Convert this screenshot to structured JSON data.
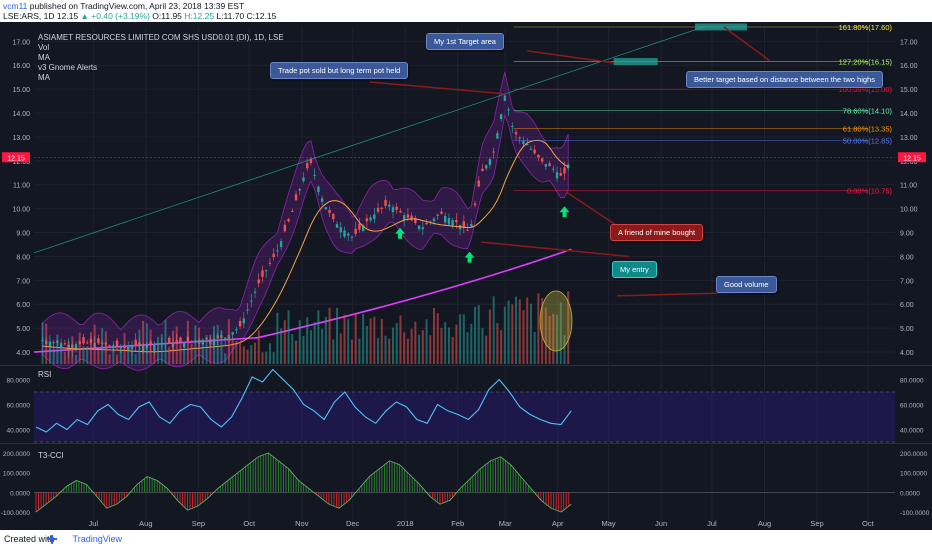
{
  "header": {
    "user": "vcm11",
    "published": "published on TradingView.com, April 23, 2018 13:39 EST",
    "symbol": "LSE:ARS, 1D",
    "last": "12.15",
    "change": "▲ +0.40 (+3.19%)",
    "open": "O:11.95",
    "high": "H:12.25",
    "low": "L:11.70",
    "close": "C:12.15"
  },
  "footer": {
    "created_with": "Created with",
    "brand": "TradingView"
  },
  "legend": {
    "title": "ASIAMET RESOURCES LIMITED COM SHS USD0.01 (DI), 1D, LSE",
    "items": [
      "Vol",
      "MA",
      "v3 Gnome Alerts",
      "MA"
    ]
  },
  "panes": {
    "rsi_label": "RSI",
    "cci_label": "T3-CCI"
  },
  "annotations": {
    "target_area": "My 1st Target area",
    "pot_sold": "Trade pot sold but long term pot held",
    "better_target": "Better target based on distance between the two highs",
    "friend_bought": "A friend of mine bought",
    "my_entry": "My entry",
    "good_volume": "Good volume"
  },
  "colors": {
    "background": "#131722",
    "up": "#26a69a",
    "down": "#ef5350",
    "ma200": "#e040fb",
    "ma50": "#f7a440",
    "rsi": "#4fc3f7",
    "cloud": "#7b1fa2",
    "price_tag": "#ff1744"
  },
  "chart_data": [
    {
      "type": "candlestick",
      "title": "ASIAMET RESOURCES LIMITED COM SHS USD0.01 (DI), 1D, LSE",
      "months": [
        "Jul",
        "Aug",
        "Sep",
        "Oct",
        "Nov",
        "Dec",
        "2018",
        "Feb",
        "Mar",
        "Apr",
        "May",
        "Jun",
        "Jul",
        "Aug",
        "Sep",
        "Oct"
      ],
      "y_ticks": [
        "4.00",
        "5.00",
        "6.00",
        "7.00",
        "8.00",
        "9.00",
        "10.00",
        "11.00",
        "12.00",
        "13.00",
        "14.00",
        "15.00",
        "16.00",
        "17.00"
      ],
      "ylim": [
        3.5,
        17.6
      ],
      "last_price_tag": "12.15",
      "close_path": [
        [
          "2017-06-15",
          4.5
        ],
        [
          "2017-07-01",
          4.3
        ],
        [
          "2017-07-15",
          4.4
        ],
        [
          "2017-08-01",
          4.2
        ],
        [
          "2017-08-15",
          4.3
        ],
        [
          "2017-09-01",
          4.4
        ],
        [
          "2017-09-15",
          4.5
        ],
        [
          "2017-10-01",
          4.6
        ],
        [
          "2017-10-10",
          5.1
        ],
        [
          "2017-10-20",
          6.8
        ],
        [
          "2017-11-01",
          8.3
        ],
        [
          "2017-11-10",
          10.0
        ],
        [
          "2017-11-16",
          11.3
        ],
        [
          "2017-11-20",
          12.0
        ],
        [
          "2017-11-28",
          10.2
        ],
        [
          "2017-12-05",
          9.4
        ],
        [
          "2017-12-15",
          8.8
        ],
        [
          "2017-12-25",
          9.6
        ],
        [
          "2018-01-05",
          10.2
        ],
        [
          "2018-01-15",
          9.7
        ],
        [
          "2018-01-25",
          9.2
        ],
        [
          "2018-02-05",
          9.8
        ],
        [
          "2018-02-15",
          9.4
        ],
        [
          "2018-02-22",
          9.0
        ],
        [
          "2018-03-01",
          11.5
        ],
        [
          "2018-03-08",
          12.3
        ],
        [
          "2018-03-15",
          14.8
        ],
        [
          "2018-03-20",
          13.2
        ],
        [
          "2018-03-28",
          12.7
        ],
        [
          "2018-04-05",
          12.0
        ],
        [
          "2018-04-12",
          11.7
        ],
        [
          "2018-04-18",
          11.3
        ],
        [
          "2018-04-23",
          12.15
        ]
      ],
      "fibonacci": [
        {
          "label": "161.80%(17.60)",
          "value": 17.6,
          "color": "#ffeb3b"
        },
        {
          "label": "127.20%(16.15)",
          "value": 16.15,
          "color": "#b2ff59"
        },
        {
          "label": "100.00%(15.00)",
          "value": 15.0,
          "color": "#ff1744"
        },
        {
          "label": "78.60%(14.10)",
          "value": 14.1,
          "color": "#69f0ae"
        },
        {
          "label": "61.80%(13.35)",
          "value": 13.35,
          "color": "#ff9800"
        },
        {
          "label": "50.00%(12.85)",
          "value": 12.85,
          "color": "#5c7cfa"
        },
        {
          "label": "0.00%(10.75)",
          "value": 10.75,
          "color": "#ff1744"
        }
      ]
    },
    {
      "type": "line",
      "name": "RSI",
      "y_ticks": [
        "40.0000",
        "60.0000",
        "80.0000"
      ],
      "ylim": [
        30,
        90
      ],
      "bands": [
        70,
        30
      ],
      "values": [
        42,
        38,
        45,
        40,
        48,
        44,
        55,
        60,
        52,
        48,
        58,
        62,
        50,
        45,
        55,
        60,
        58,
        48,
        42,
        50,
        65,
        82,
        78,
        88,
        80,
        72,
        60,
        55,
        48,
        62,
        70,
        58,
        50,
        45,
        55,
        62,
        58,
        48,
        45,
        60,
        55,
        52,
        48,
        56,
        72,
        80,
        70,
        58,
        52,
        48,
        45,
        44,
        55
      ]
    },
    {
      "type": "histogram",
      "name": "T3-CCI",
      "y_ticks": [
        "200.0000",
        "100.0000",
        "0.0000",
        "-100.0000"
      ],
      "ylim": [
        -150,
        240
      ],
      "values": [
        -100,
        -60,
        -20,
        30,
        60,
        40,
        -20,
        -80,
        -60,
        -20,
        40,
        80,
        60,
        20,
        -40,
        -90,
        -70,
        -30,
        20,
        60,
        100,
        140,
        180,
        200,
        160,
        120,
        60,
        20,
        -20,
        -60,
        -80,
        -40,
        20,
        80,
        120,
        160,
        140,
        90,
        40,
        -20,
        -60,
        -40,
        20,
        70,
        120,
        160,
        180,
        140,
        80,
        20,
        -40,
        -80,
        -100,
        -60
      ]
    }
  ]
}
